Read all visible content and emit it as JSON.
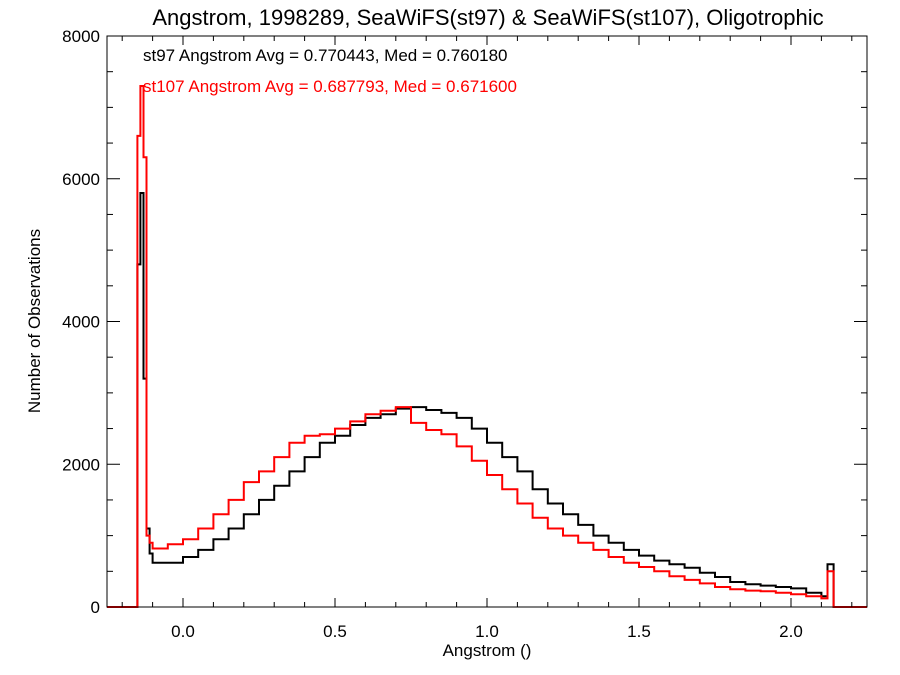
{
  "chart_data": {
    "type": "line",
    "title": "Angstrom, 1998289, SeaWiFS(st97) & SeaWiFS(st107), Oligotrophic",
    "xlabel": "Angstrom ()",
    "ylabel": "Number of Observations",
    "xlim": [
      -0.25,
      2.25
    ],
    "ylim": [
      0,
      8000
    ],
    "xticks": [
      "0.0",
      "0.5",
      "1.0",
      "1.5",
      "2.0"
    ],
    "yticks": [
      "0",
      "2000",
      "4000",
      "6000",
      "8000"
    ],
    "grid": false,
    "annotations": [
      {
        "text": "st97 Angstrom Avg = 0.770443, Med = 0.760180",
        "color": "#000000"
      },
      {
        "text": "st107 Angstrom Avg = 0.687793, Med = 0.671600",
        "color": "#ff0000"
      }
    ],
    "series": [
      {
        "color": "#000000",
        "x": [
          -0.25,
          -0.16,
          -0.15,
          -0.14,
          -0.13,
          -0.12,
          -0.11,
          -0.1,
          -0.05,
          0.0,
          0.05,
          0.1,
          0.15,
          0.2,
          0.25,
          0.3,
          0.35,
          0.4,
          0.45,
          0.5,
          0.55,
          0.6,
          0.65,
          0.7,
          0.75,
          0.8,
          0.85,
          0.9,
          0.95,
          1.0,
          1.05,
          1.1,
          1.15,
          1.2,
          1.25,
          1.3,
          1.35,
          1.4,
          1.45,
          1.5,
          1.55,
          1.6,
          1.65,
          1.7,
          1.75,
          1.8,
          1.85,
          1.9,
          1.95,
          2.0,
          2.05,
          2.1,
          2.12,
          2.14,
          2.15,
          2.25
        ],
        "y": [
          0,
          0,
          4800,
          5800,
          3200,
          1100,
          750,
          620,
          620,
          700,
          800,
          950,
          1100,
          1300,
          1500,
          1700,
          1900,
          2100,
          2300,
          2400,
          2550,
          2650,
          2700,
          2780,
          2800,
          2760,
          2720,
          2650,
          2500,
          2300,
          2100,
          1900,
          1650,
          1450,
          1300,
          1150,
          1000,
          900,
          800,
          720,
          650,
          600,
          550,
          480,
          420,
          350,
          320,
          300,
          280,
          260,
          200,
          150,
          600,
          0,
          0,
          0
        ]
      },
      {
        "color": "#ff0000",
        "x": [
          -0.25,
          -0.16,
          -0.15,
          -0.14,
          -0.13,
          -0.12,
          -0.11,
          -0.1,
          -0.05,
          0.0,
          0.05,
          0.1,
          0.15,
          0.2,
          0.25,
          0.3,
          0.35,
          0.4,
          0.45,
          0.5,
          0.55,
          0.6,
          0.65,
          0.7,
          0.75,
          0.8,
          0.85,
          0.9,
          0.95,
          1.0,
          1.05,
          1.1,
          1.15,
          1.2,
          1.25,
          1.3,
          1.35,
          1.4,
          1.45,
          1.5,
          1.55,
          1.6,
          1.65,
          1.7,
          1.75,
          1.8,
          1.85,
          1.9,
          1.95,
          2.0,
          2.05,
          2.1,
          2.12,
          2.14,
          2.15,
          2.25
        ],
        "y": [
          0,
          0,
          6600,
          7300,
          6300,
          1000,
          900,
          820,
          880,
          950,
          1100,
          1300,
          1500,
          1750,
          1900,
          2100,
          2300,
          2400,
          2420,
          2500,
          2600,
          2700,
          2750,
          2800,
          2580,
          2480,
          2420,
          2250,
          2050,
          1850,
          1650,
          1450,
          1250,
          1100,
          1000,
          900,
          800,
          700,
          620,
          560,
          500,
          430,
          380,
          330,
          280,
          250,
          230,
          220,
          200,
          180,
          150,
          120,
          500,
          0,
          0,
          0
        ]
      }
    ]
  }
}
